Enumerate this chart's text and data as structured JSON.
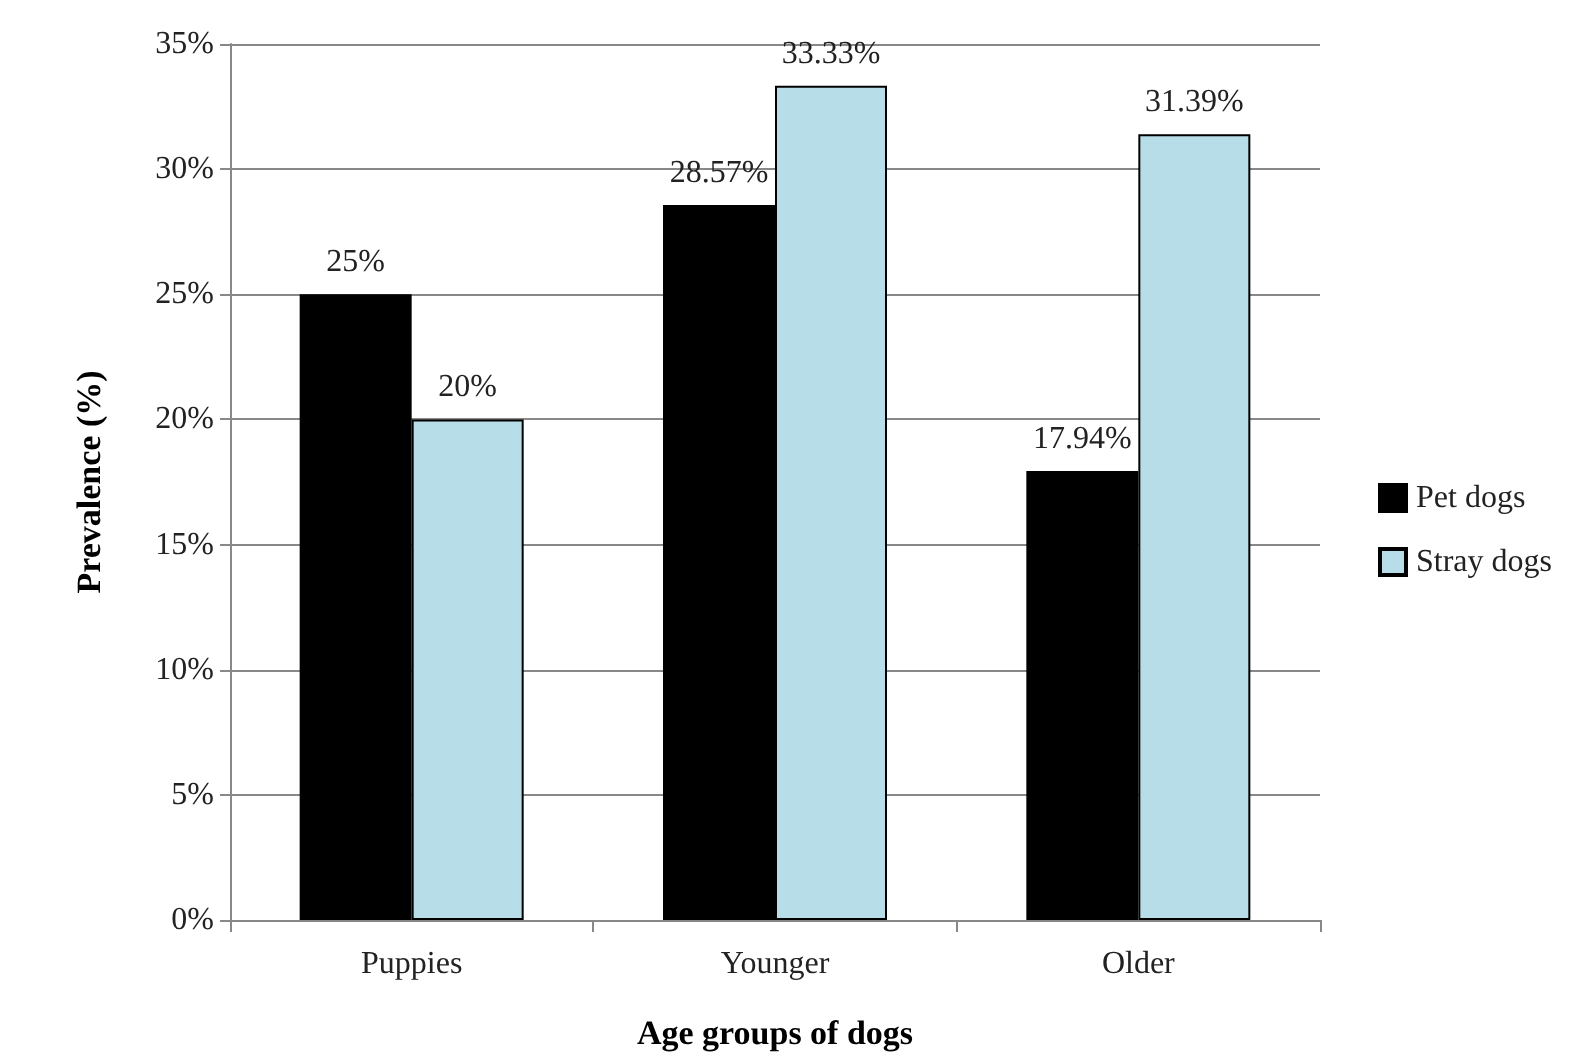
{
  "chart_data": {
    "type": "bar",
    "xlabel": "Age groups of dogs",
    "ylabel": "Prevalence (%)",
    "categories": [
      "Puppies",
      "Younger",
      "Older"
    ],
    "series": [
      {
        "name": "Pet dogs",
        "color": "#000000",
        "values": [
          25,
          28.57,
          17.94
        ],
        "value_labels": [
          "25%",
          "28.57%",
          "17.94%"
        ]
      },
      {
        "name": "Stray dogs",
        "color": "#b7dee8",
        "values": [
          20,
          33.33,
          31.39
        ],
        "value_labels": [
          "20%",
          "33.33%",
          "31.39%"
        ]
      }
    ],
    "ylim": [
      0,
      35
    ],
    "yticks": [
      {
        "value": 0,
        "label": "0%"
      },
      {
        "value": 5,
        "label": "5%"
      },
      {
        "value": 10,
        "label": "10%"
      },
      {
        "value": 15,
        "label": "15%"
      },
      {
        "value": 20,
        "label": "20%"
      },
      {
        "value": 25,
        "label": "25%"
      },
      {
        "value": 30,
        "label": "30%"
      },
      {
        "value": 35,
        "label": "35%"
      }
    ],
    "grid": "y",
    "legend": "right"
  }
}
